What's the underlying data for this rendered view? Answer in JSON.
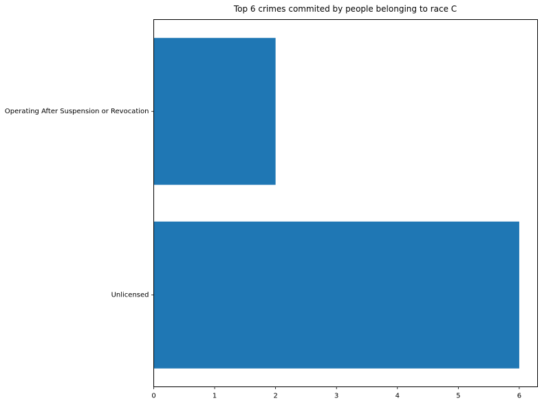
{
  "chart_data": {
    "type": "bar",
    "orientation": "horizontal",
    "title": "Top 6 crimes commited by people belonging to race C",
    "xlabel": "",
    "ylabel": "",
    "categories": [
      "Unlicensed",
      "Operating After Suspension or Revocation"
    ],
    "values": [
      6,
      2
    ],
    "xlim": [
      0,
      6.3
    ],
    "xticks": [
      0,
      1,
      2,
      3,
      4,
      5,
      6
    ],
    "grid": false,
    "legend": "none",
    "bar_color": "#1f77b4"
  }
}
